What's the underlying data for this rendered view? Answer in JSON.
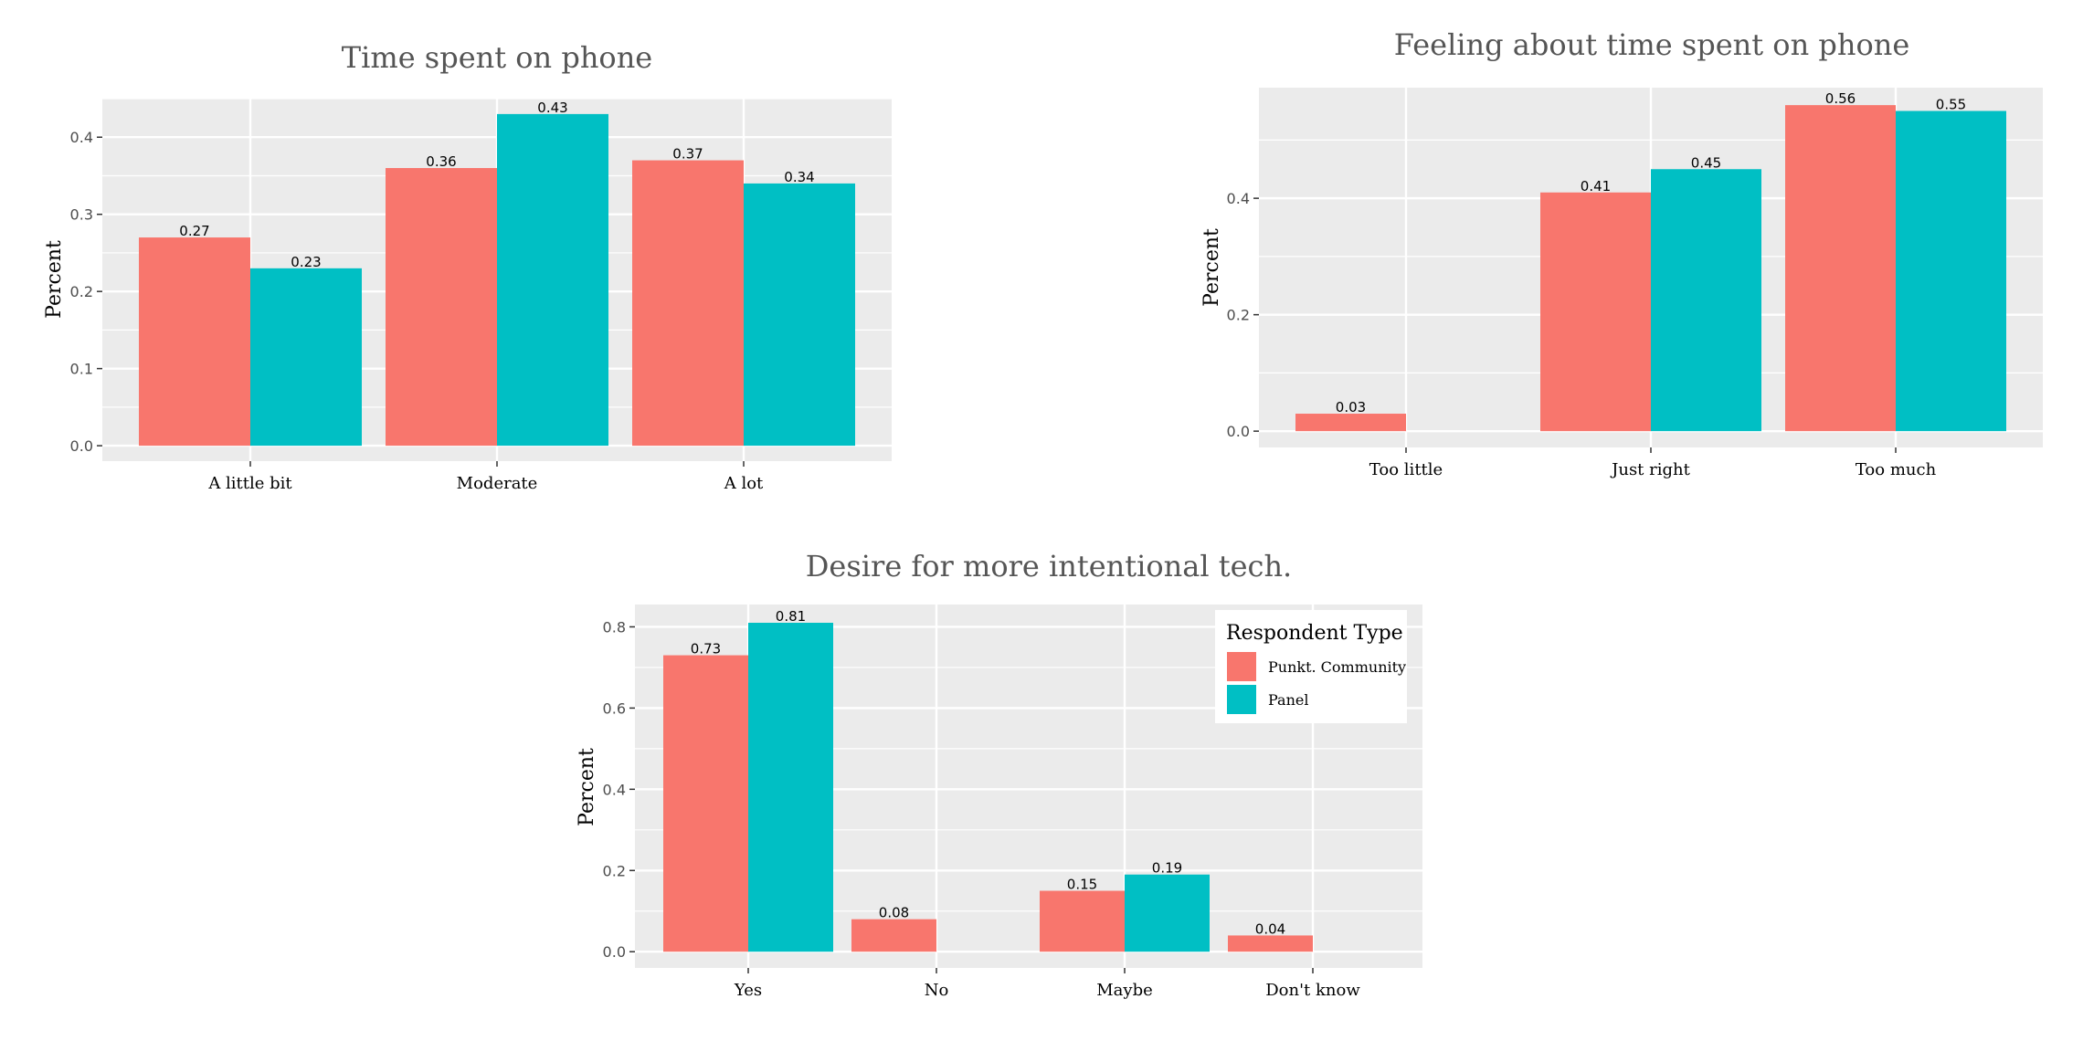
{
  "chart_data": [
    {
      "type": "bar",
      "title": "Time spent on phone",
      "xlabel": "",
      "ylabel": "Percent",
      "categories": [
        "A little bit",
        "Moderate",
        "A lot"
      ],
      "series": [
        {
          "name": "Punkt. Community",
          "values": [
            0.27,
            0.36,
            0.37
          ]
        },
        {
          "name": "Panel",
          "values": [
            0.23,
            0.43,
            0.34
          ]
        }
      ],
      "value_labels": [
        [
          "0.27",
          "0.36",
          "0.37"
        ],
        [
          "0.23",
          "0.43",
          "0.34"
        ]
      ],
      "ylim": [
        -0.02,
        0.45
      ],
      "yticks": [
        0.0,
        0.1,
        0.2,
        0.3,
        0.4
      ],
      "ytick_labels": [
        "0.0",
        "0.1",
        "0.2",
        "0.3",
        "0.4"
      ],
      "grid": true
    },
    {
      "type": "bar",
      "title": "Feeling about time spent on phone",
      "xlabel": "",
      "ylabel": "Percent",
      "categories": [
        "Too little",
        "Just right",
        "Too much"
      ],
      "series": [
        {
          "name": "Punkt. Community",
          "values": [
            0.03,
            0.41,
            0.56
          ]
        },
        {
          "name": "Panel",
          "values": [
            null,
            0.45,
            0.55
          ]
        }
      ],
      "value_labels": [
        [
          "0.03",
          "0.41",
          "0.56"
        ],
        [
          "",
          "0.45",
          "0.55"
        ]
      ],
      "ylim": [
        -0.028,
        0.59
      ],
      "yticks": [
        0.0,
        0.2,
        0.4
      ],
      "ytick_labels": [
        "0.0",
        "0.2",
        "0.4"
      ],
      "grid": true
    },
    {
      "type": "bar",
      "title": "Desire for more intentional tech.",
      "xlabel": "",
      "ylabel": "Percent",
      "categories": [
        "Yes",
        "No",
        "Maybe",
        "Don't know"
      ],
      "series": [
        {
          "name": "Punkt. Community",
          "values": [
            0.73,
            0.08,
            0.15,
            0.04
          ]
        },
        {
          "name": "Panel",
          "values": [
            0.81,
            null,
            0.19,
            null
          ]
        }
      ],
      "value_labels": [
        [
          "0.73",
          "0.08",
          "0.15",
          "0.04"
        ],
        [
          "0.81",
          "",
          "0.19",
          ""
        ]
      ],
      "ylim": [
        -0.04,
        0.855
      ],
      "yticks": [
        0.0,
        0.2,
        0.4,
        0.6,
        0.8
      ],
      "ytick_labels": [
        "0.0",
        "0.2",
        "0.4",
        "0.6",
        "0.8"
      ],
      "grid": true,
      "legend": {
        "title": "Respondent Type",
        "position": "top-right",
        "entries": [
          "Punkt. Community",
          "Panel"
        ]
      }
    }
  ],
  "colors": {
    "punkt_community": "#F8766D",
    "panel": "#00BFC4",
    "panel_background": "#EBEBEB",
    "grid": "#FFFFFF",
    "title": "#555555"
  }
}
